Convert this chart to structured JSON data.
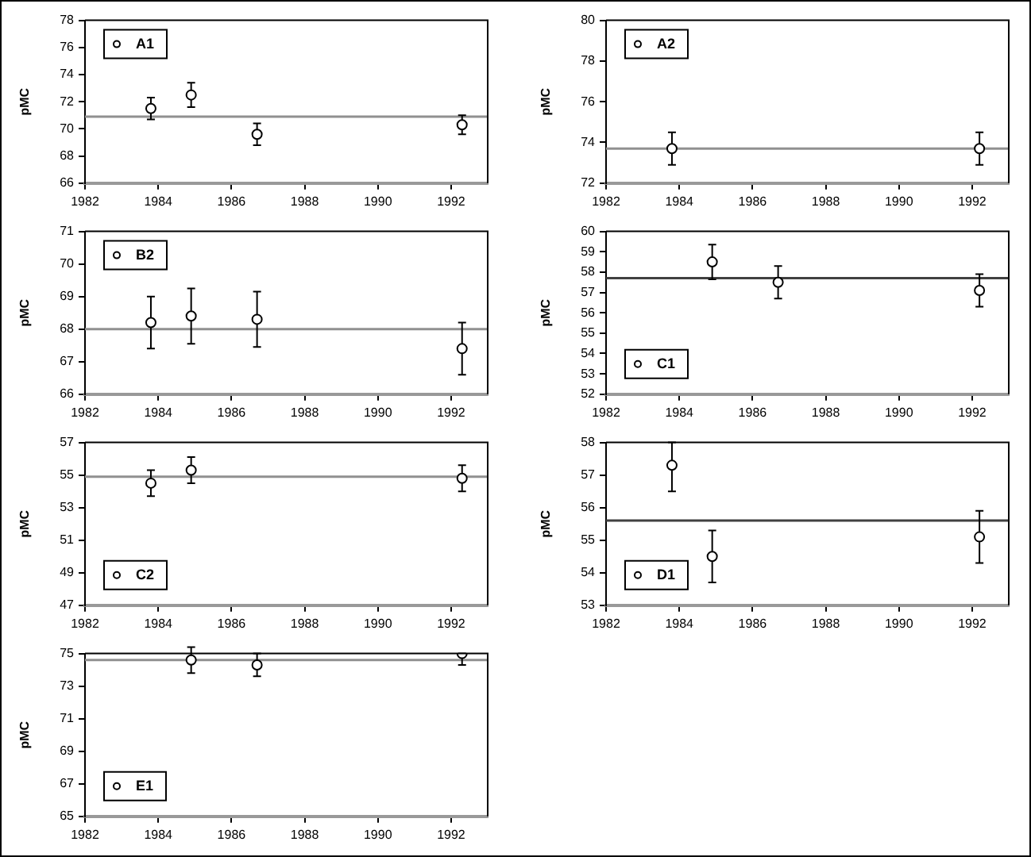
{
  "chart_data": [
    {
      "type": "scatter",
      "ylabel": "pMC",
      "x": [
        1983.8,
        1984.9,
        1986.7,
        1992.3
      ],
      "xlim": [
        1982,
        1993
      ],
      "xticks": [
        1982,
        1984,
        1986,
        1988,
        1990,
        1992
      ],
      "ylim": [
        66,
        78
      ],
      "yticks": [
        66,
        68,
        70,
        72,
        74,
        76,
        78
      ],
      "grid": false,
      "legend": "top left",
      "marker": "circle",
      "series": [
        {
          "name": "A1",
          "color": "#000000",
          "values": [
            71.5,
            72.5,
            69.6,
            70.3
          ],
          "errors": [
            0.8,
            0.9,
            0.8,
            0.7
          ]
        }
      ],
      "ref_lines": [
        {
          "axis": "y",
          "value": 70.9,
          "color": "#909090"
        }
      ]
    },
    {
      "type": "scatter",
      "ylabel": "pMC",
      "x": [
        1983.8,
        1992.2
      ],
      "xlim": [
        1982,
        1993
      ],
      "xticks": [
        1982,
        1984,
        1986,
        1988,
        1990,
        1992
      ],
      "ylim": [
        72,
        80
      ],
      "yticks": [
        72,
        74,
        76,
        78,
        80
      ],
      "grid": false,
      "legend": "top left",
      "marker": "circle",
      "series": [
        {
          "name": "A2",
          "color": "#000000",
          "values": [
            73.7,
            73.7
          ],
          "errors": [
            0.8,
            0.8
          ]
        }
      ],
      "ref_lines": [
        {
          "axis": "y",
          "value": 73.7,
          "color": "#909090"
        }
      ]
    },
    {
      "type": "scatter",
      "ylabel": "pMC",
      "x": [
        1983.8,
        1984.9,
        1986.7,
        1992.3
      ],
      "xlim": [
        1982,
        1993
      ],
      "xticks": [
        1982,
        1984,
        1986,
        1988,
        1990,
        1992
      ],
      "ylim": [
        66,
        71
      ],
      "yticks": [
        66,
        67,
        68,
        69,
        70,
        71
      ],
      "grid": false,
      "legend": "top left",
      "marker": "circle",
      "series": [
        {
          "name": "B2",
          "color": "#000000",
          "values": [
            68.2,
            68.4,
            68.3,
            67.4
          ],
          "errors": [
            0.8,
            0.85,
            0.85,
            0.8
          ]
        }
      ],
      "ref_lines": [
        {
          "axis": "y",
          "value": 68.0,
          "color": "#909090"
        }
      ]
    },
    {
      "type": "scatter",
      "ylabel": "pMC",
      "x": [
        1984.9,
        1986.7,
        1992.2
      ],
      "xlim": [
        1982,
        1993
      ],
      "xticks": [
        1982,
        1984,
        1986,
        1988,
        1990,
        1992
      ],
      "ylim": [
        52,
        60
      ],
      "yticks": [
        52,
        53,
        54,
        55,
        56,
        57,
        58,
        59,
        60
      ],
      "grid": false,
      "legend": "bottom left",
      "marker": "circle",
      "series": [
        {
          "name": "C1",
          "color": "#000000",
          "values": [
            58.5,
            57.5,
            57.1
          ],
          "errors": [
            0.85,
            0.8,
            0.8
          ]
        }
      ],
      "ref_lines": [
        {
          "axis": "y",
          "value": 57.7,
          "color": "#404040"
        }
      ]
    },
    {
      "type": "scatter",
      "ylabel": "pMC",
      "x": [
        1983.8,
        1984.9,
        1992.3
      ],
      "xlim": [
        1982,
        1993
      ],
      "xticks": [
        1982,
        1984,
        1986,
        1988,
        1990,
        1992
      ],
      "ylim": [
        47,
        57
      ],
      "yticks": [
        47,
        49,
        51,
        53,
        55,
        57
      ],
      "grid": false,
      "legend": "bottom left",
      "marker": "circle",
      "series": [
        {
          "name": "C2",
          "color": "#000000",
          "values": [
            54.5,
            55.3,
            54.8
          ],
          "errors": [
            0.8,
            0.8,
            0.8
          ]
        }
      ],
      "ref_lines": [
        {
          "axis": "y",
          "value": 54.9,
          "color": "#909090"
        }
      ]
    },
    {
      "type": "scatter",
      "ylabel": "pMC",
      "x": [
        1983.8,
        1984.9,
        1992.2
      ],
      "xlim": [
        1982,
        1993
      ],
      "xticks": [
        1982,
        1984,
        1986,
        1988,
        1990,
        1992
      ],
      "ylim": [
        53,
        58
      ],
      "yticks": [
        53,
        54,
        55,
        56,
        57,
        58
      ],
      "grid": false,
      "legend": "bottom left",
      "marker": "circle",
      "series": [
        {
          "name": "D1",
          "color": "#000000",
          "values": [
            57.3,
            54.5,
            55.1
          ],
          "errors": [
            [
              56.5,
              58
            ],
            0.8,
            0.8
          ]
        }
      ],
      "ref_lines": [
        {
          "axis": "y",
          "value": 55.6,
          "color": "#404040"
        }
      ]
    },
    {
      "type": "scatter",
      "ylabel": "pMC",
      "x": [
        1984.9,
        1986.7,
        1992.3
      ],
      "xlim": [
        1982,
        1993
      ],
      "xticks": [
        1982,
        1984,
        1986,
        1988,
        1990,
        1992
      ],
      "ylim": [
        65,
        75
      ],
      "yticks": [
        65,
        67,
        69,
        71,
        73,
        75
      ],
      "grid": false,
      "legend": "bottom left",
      "marker": "circle",
      "series": [
        {
          "name": "E1",
          "color": "#000000",
          "values": [
            74.6,
            74.3,
            75.0
          ],
          "errors": [
            0.8,
            0.7,
            [
              74.3,
              75
            ]
          ]
        }
      ],
      "ref_lines": [
        {
          "axis": "y",
          "value": 74.6,
          "color": "#909090"
        }
      ]
    }
  ]
}
